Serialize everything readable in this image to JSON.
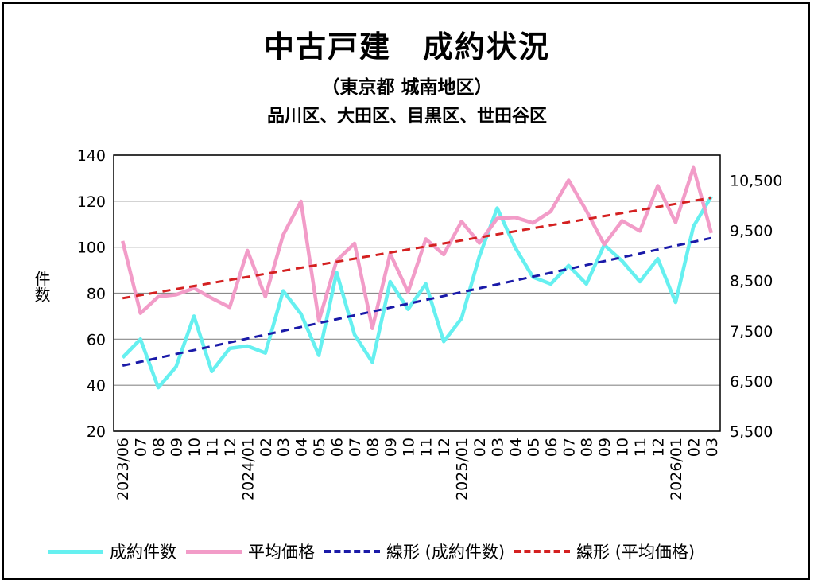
{
  "chart_data": {
    "type": "line",
    "title": "中古戸建　成約状況",
    "subtitle": "（東京都 城南地区）",
    "subtitle2": "品川区、大田区、目黒区、世田谷区",
    "ylabel": "件数",
    "ylim": [
      20,
      140
    ],
    "y_ticks": [
      20,
      40,
      60,
      80,
      100,
      120,
      140
    ],
    "y2lim": [
      5500,
      11000
    ],
    "y2_ticks": [
      "5,500",
      "6,500",
      "7,500",
      "8,500",
      "9,500",
      "10,500"
    ],
    "y2_tick_values": [
      5500,
      6500,
      7500,
      8500,
      9500,
      10500
    ],
    "x_labels": [
      "2023/06",
      "07",
      "08",
      "09",
      "10",
      "11",
      "12",
      "2024/01",
      "02",
      "03",
      "04",
      "05",
      "06",
      "07",
      "08",
      "09",
      "10",
      "11",
      "12",
      "2025/01",
      "02",
      "03",
      "04",
      "05",
      "06",
      "07",
      "08",
      "09",
      "10",
      "11",
      "12",
      "2026/01",
      "02",
      "03"
    ],
    "grid": true,
    "legend_position": "bottom",
    "series": [
      {
        "name": "成約件数",
        "axis": "left",
        "color": "#66f0f0",
        "values": [
          52,
          60,
          39,
          48,
          70,
          46,
          56,
          57,
          54,
          81,
          71,
          53,
          89,
          62,
          50,
          85,
          73,
          84,
          59,
          69,
          96,
          117,
          100,
          87,
          84,
          92,
          84,
          101,
          94,
          85,
          95,
          76,
          109,
          122
        ]
      },
      {
        "name": "平均価格",
        "axis": "right",
        "color": "#f29cc8",
        "values": [
          9290,
          7850,
          8180,
          8220,
          8350,
          8150,
          7970,
          9100,
          8180,
          9410,
          10080,
          7700,
          8900,
          9240,
          7550,
          9040,
          8270,
          9330,
          9020,
          9680,
          9250,
          9740,
          9760,
          9650,
          9880,
          10500,
          9890,
          9220,
          9690,
          9490,
          10390,
          9660,
          10750,
          9450
        ]
      },
      {
        "name": "線形 (成約件数)",
        "axis": "left",
        "color": "#1a1aa8",
        "dash": true,
        "trend": [
          48.5,
          104
        ]
      },
      {
        "name": "線形 (平均価格)",
        "axis": "right",
        "color": "#d42020",
        "dash": true,
        "trend": [
          8150,
          10150
        ]
      }
    ]
  }
}
